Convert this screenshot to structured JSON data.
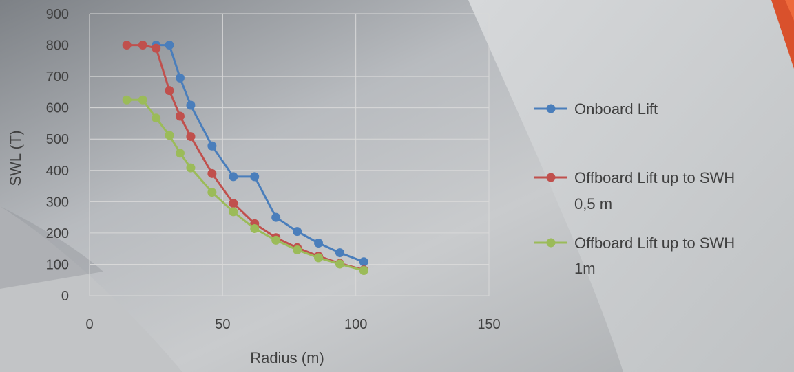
{
  "chart_data": {
    "type": "scatter",
    "xlabel": "Radius (m)",
    "ylabel": "SWL (T)",
    "xlim": [
      0,
      150
    ],
    "ylim": [
      0,
      900
    ],
    "xticks": [
      0,
      50,
      100,
      150
    ],
    "yticks": [
      0,
      100,
      200,
      300,
      400,
      500,
      600,
      700,
      800,
      900
    ],
    "grid": true,
    "legend_position": "right",
    "series": [
      {
        "name": "Onboard Lift",
        "color": "#4a7ebb",
        "points": [
          [
            25,
            800
          ],
          [
            30,
            800
          ],
          [
            34,
            695
          ],
          [
            38,
            608
          ],
          [
            46,
            478
          ],
          [
            54,
            380
          ],
          [
            62,
            380
          ],
          [
            70,
            250
          ],
          [
            78,
            205
          ],
          [
            86,
            168
          ],
          [
            94,
            137
          ],
          [
            103,
            108
          ]
        ]
      },
      {
        "name": "Offboard Lift up to SWH 0,5 m",
        "color": "#c0504d",
        "points": [
          [
            14,
            800
          ],
          [
            20,
            800
          ],
          [
            25,
            790
          ],
          [
            30,
            655
          ],
          [
            34,
            573
          ],
          [
            38,
            508
          ],
          [
            46,
            390
          ],
          [
            54,
            295
          ],
          [
            62,
            230
          ],
          [
            70,
            185
          ],
          [
            78,
            153
          ],
          [
            86,
            126
          ],
          [
            94,
            103
          ],
          [
            103,
            82
          ]
        ]
      },
      {
        "name": "Offboard Lift up to SWH 1m",
        "color": "#9bbb59",
        "points": [
          [
            14,
            625
          ],
          [
            20,
            625
          ],
          [
            25,
            567
          ],
          [
            30,
            512
          ],
          [
            34,
            455
          ],
          [
            38,
            408
          ],
          [
            46,
            330
          ],
          [
            54,
            268
          ],
          [
            62,
            214
          ],
          [
            70,
            177
          ],
          [
            78,
            146
          ],
          [
            86,
            121
          ],
          [
            94,
            101
          ],
          [
            103,
            80
          ]
        ]
      }
    ]
  }
}
